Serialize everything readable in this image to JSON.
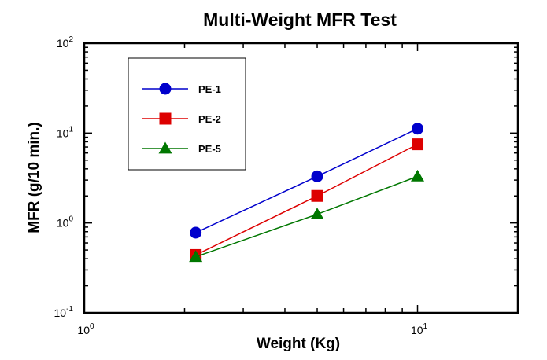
{
  "chart_data": {
    "type": "line",
    "title": "Multi-Weight MFR Test",
    "xlabel": "Weight (Kg)",
    "ylabel": "MFR (g/10 min.)",
    "x_scale": "log",
    "y_scale": "log",
    "xlim": [
      1,
      20
    ],
    "ylim": [
      0.1,
      100
    ],
    "x_ticks": [
      {
        "value": 1,
        "base": "10",
        "exp": "0"
      },
      {
        "value": 10,
        "base": "10",
        "exp": "1"
      }
    ],
    "y_ticks": [
      {
        "value": 0.1,
        "base": "10",
        "exp": "-1"
      },
      {
        "value": 1,
        "base": "10",
        "exp": "0"
      },
      {
        "value": 10,
        "base": "10",
        "exp": "1"
      },
      {
        "value": 100,
        "base": "10",
        "exp": "2"
      }
    ],
    "grid": false,
    "legend_position": "top-left",
    "x": [
      2.16,
      5,
      10
    ],
    "series": [
      {
        "name": "PE-1",
        "values": [
          0.78,
          3.3,
          11.2
        ],
        "color": "#0000cc",
        "marker": "circle"
      },
      {
        "name": "PE-2",
        "values": [
          0.44,
          2.0,
          7.5
        ],
        "color": "#dd0000",
        "marker": "square"
      },
      {
        "name": "PE-5",
        "values": [
          0.42,
          1.25,
          3.3
        ],
        "color": "#007700",
        "marker": "triangle"
      }
    ]
  }
}
